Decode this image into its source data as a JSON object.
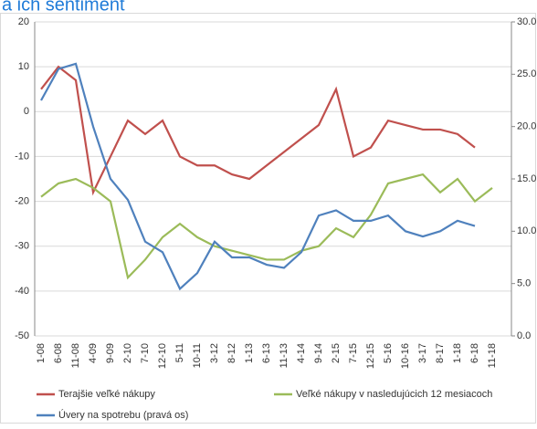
{
  "chart_data": {
    "type": "line",
    "title": "a ich sentiment",
    "categories": [
      "1-08",
      "6-08",
      "11-08",
      "4-09",
      "9-09",
      "2-10",
      "7-10",
      "12-10",
      "5-11",
      "10-11",
      "3-12",
      "8-12",
      "1-13",
      "6-13",
      "11-13",
      "4-14",
      "9-14",
      "2-15",
      "7-15",
      "12-15",
      "5-16",
      "10-16",
      "3-17",
      "8-17",
      "1-18",
      "6-18",
      "11-18"
    ],
    "series": [
      {
        "name": "Terajšie veľké nákupy",
        "color": "#c0504d",
        "values": [
          5,
          10,
          7,
          -18,
          -10,
          -2,
          -5,
          -2,
          -10,
          -12,
          -12,
          -14,
          -15,
          -12,
          -9,
          -6,
          -3,
          5,
          -10,
          -8,
          -2,
          -3,
          -4,
          -4,
          -5,
          -8,
          null
        ]
      },
      {
        "name": "Veľké nákupy v nasledujúcich 12 mesiacoch",
        "color": "#9bbb59",
        "values": [
          -19,
          -16,
          -15,
          -17,
          -20,
          -37,
          -33,
          -28,
          -25,
          -28,
          -30,
          -31,
          -32,
          -33,
          -33,
          -31,
          -30,
          -26,
          -28,
          -23,
          -16,
          -15,
          -14,
          -18,
          -15,
          -20,
          -17
        ]
      },
      {
        "name": "Úvery na spotrebu (pravá os)",
        "color": "#4f81bd",
        "axis": "y2",
        "values": [
          22.5,
          25.5,
          26,
          20,
          15,
          13,
          9,
          8,
          4.5,
          6,
          9,
          7.5,
          7.5,
          6.8,
          6.5,
          8,
          11.5,
          12,
          11,
          11,
          11.5,
          10,
          9.5,
          10,
          11,
          10.5,
          null
        ]
      }
    ],
    "ylim": [
      -50,
      20
    ],
    "yticks": [
      -50,
      -40,
      -30,
      -20,
      -10,
      0,
      10,
      20
    ],
    "y2lim": [
      0,
      30
    ],
    "y2ticks": [
      {
        "value": 0,
        "label": "0.0"
      },
      {
        "value": 5,
        "label": "5.0"
      },
      {
        "value": 10,
        "label": "10.0"
      },
      {
        "value": 15,
        "label": "15.0"
      },
      {
        "value": 20,
        "label": "20.0"
      },
      {
        "value": 25,
        "label": "25.0"
      },
      {
        "value": 30,
        "label": "30.0"
      }
    ],
    "grid": true
  }
}
